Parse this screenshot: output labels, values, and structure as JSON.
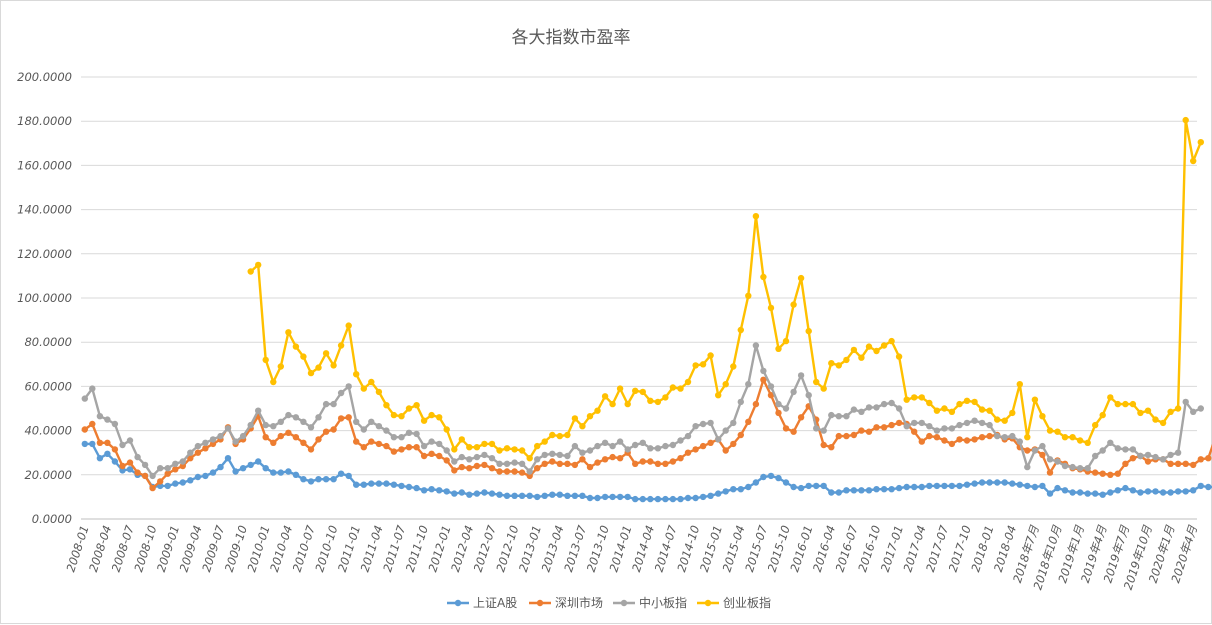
{
  "chart_data": {
    "type": "line",
    "title": "各大指数市盈率",
    "xlabel": "",
    "ylabel": "",
    "ylim": [
      0,
      200
    ],
    "y_ticks": [
      "0.0000",
      "20.0000",
      "40.0000",
      "60.0000",
      "80.0000",
      "100.0000",
      "120.0000",
      "140.0000",
      "160.0000",
      "180.0000",
      "200.0000"
    ],
    "x_tick_labels": [
      "2008-01",
      "2008-04",
      "2008-07",
      "2008-10",
      "2009-01",
      "2009-04",
      "2009-07",
      "2009-10",
      "2010-01",
      "2010-04",
      "2010-07",
      "2010-10",
      "2011-01",
      "2011-04",
      "2011-07",
      "2011-10",
      "2012-01",
      "2012-04",
      "2012-07",
      "2012-10",
      "2013-01",
      "2013-04",
      "2013-07",
      "2013-10",
      "2014-01",
      "2014-04",
      "2014-07",
      "2014-10",
      "2015-01",
      "2015-04",
      "2015-07",
      "2015-10",
      "2016-01",
      "2016-04",
      "2016-07",
      "2016-10",
      "2017-01",
      "2017-04",
      "2017-07",
      "2017-10",
      "2018-01",
      "2018-04",
      "2018年7月",
      "2018年10月",
      "2019年1月",
      "2019年4月",
      "2019年7月",
      "2019年10月",
      "2020年1月",
      "2020年4月"
    ],
    "n_points": 148,
    "grid": true,
    "legend_position": "bottom",
    "series": [
      {
        "name": "上证A股",
        "color": "#5b9bd5",
        "values": [
          34,
          34,
          27.5,
          29.5,
          26,
          22,
          22.5,
          20,
          19.5,
          14.5,
          15,
          15,
          16,
          16.5,
          17.5,
          19,
          19.5,
          21,
          23.5,
          27.5,
          21.5,
          23,
          24.5,
          26,
          23,
          21,
          21,
          21.5,
          20,
          18,
          17,
          18,
          18,
          18,
          20.5,
          19.5,
          15.5,
          15.5,
          16,
          16,
          16,
          15.5,
          15,
          14.5,
          14,
          13,
          13.5,
          13,
          12.5,
          11.5,
          12,
          11,
          11.5,
          12,
          11.5,
          11,
          10.5,
          10.5,
          10.5,
          10.5,
          10,
          10.5,
          11,
          11,
          10.5,
          10.5,
          10.5,
          9.5,
          9.5,
          10,
          10,
          10,
          10,
          9,
          9,
          9,
          9,
          9,
          9,
          9,
          9.5,
          9.5,
          10,
          10.5,
          11.5,
          12.5,
          13.5,
          13.5,
          14.5,
          16.5,
          19,
          19.5,
          18.5,
          16.5,
          14.5,
          14,
          15,
          15,
          15,
          12,
          12,
          13,
          13,
          13,
          13,
          13.5,
          13.5,
          13.5,
          14,
          14.5,
          14.5,
          14.5,
          15,
          15,
          15,
          15,
          15,
          15.5,
          16,
          16.5,
          16.5,
          16.5,
          16.5,
          16,
          15.5,
          15,
          14.5,
          15,
          11.5,
          14,
          13,
          12,
          12,
          11.5,
          11.5,
          11,
          12,
          13,
          14,
          13,
          12,
          12.5,
          12.5,
          12,
          12,
          12.5,
          12.5,
          13,
          15,
          14.5,
          14.5
        ]
      },
      {
        "name": "深圳市场",
        "color": "#ed7d31",
        "values": [
          40.5,
          43,
          34.5,
          34.5,
          31.5,
          24,
          25.5,
          21,
          19.5,
          14,
          17,
          20.5,
          22.5,
          24,
          27.5,
          30,
          32,
          34,
          36,
          41.5,
          34,
          36,
          41,
          46.5,
          37,
          34.5,
          37.5,
          39,
          37,
          34.5,
          31.5,
          36,
          39.5,
          40.5,
          45.5,
          46,
          35,
          32.5,
          35,
          34,
          33,
          30.5,
          31.5,
          32.5,
          32.5,
          28.5,
          29.5,
          28.5,
          26.5,
          22,
          23.5,
          23,
          24,
          24.5,
          23,
          21.5,
          21.5,
          21.5,
          21,
          19.5,
          23,
          25,
          26,
          25,
          25,
          24.5,
          27,
          23.5,
          25.5,
          27,
          28,
          27.5,
          30,
          25,
          26,
          26,
          25,
          25,
          26,
          27.5,
          30,
          31.5,
          33,
          34.5,
          36,
          31,
          34,
          38,
          44,
          52,
          63,
          56,
          48,
          41,
          39.5,
          46,
          51,
          45,
          33.5,
          32.5,
          37.5,
          37.5,
          38,
          40,
          39.5,
          41.5,
          41.5,
          42.5,
          43.5,
          43,
          39.5,
          35,
          37.5,
          37,
          35.5,
          34,
          36,
          35.5,
          36,
          37,
          37.5,
          38,
          36,
          36.5,
          32.5,
          31,
          31.5,
          29,
          21,
          26.5,
          25,
          23,
          22.5,
          21.5,
          21,
          20.5,
          20,
          20.5,
          25,
          27.5,
          28.5,
          26,
          27,
          27,
          25,
          25,
          25,
          24.5,
          27,
          27.5,
          37.5,
          35,
          36.5
        ]
      },
      {
        "name": "中小板指",
        "color": "#a5a5a5",
        "values": [
          54.5,
          59,
          46.5,
          45,
          43,
          33.5,
          35.5,
          28,
          24.5,
          19.5,
          23,
          23,
          25,
          26,
          30,
          33,
          34.5,
          36,
          37.5,
          41,
          35,
          37.5,
          42.5,
          49,
          42.5,
          42,
          44,
          47,
          46,
          44,
          41.5,
          46,
          52,
          52,
          57,
          60,
          44,
          40.5,
          44,
          42,
          40,
          37,
          37,
          39,
          38.5,
          33,
          35,
          34,
          31,
          26,
          28,
          27,
          28,
          29,
          27.5,
          25,
          25,
          25.5,
          25,
          21.5,
          27,
          29,
          29.5,
          29,
          28.5,
          33,
          30,
          31,
          33,
          34.5,
          33,
          35,
          31.5,
          33.5,
          34.5,
          32,
          32,
          33,
          33.5,
          35.5,
          37.5,
          42,
          43,
          43.5,
          36,
          40,
          43.5,
          53,
          61,
          78.5,
          67,
          60,
          52,
          50,
          57.5,
          65,
          56,
          41,
          40,
          47,
          46.5,
          46.5,
          49.5,
          48.5,
          50.5,
          50.5,
          52,
          52.5,
          50,
          42,
          43.5,
          43.5,
          42,
          40,
          41,
          41,
          42.5,
          43.5,
          44.5,
          43.5,
          42.5,
          37.5,
          37,
          37.5,
          35,
          23.5,
          31,
          33,
          27,
          26,
          24,
          23.5,
          23,
          23,
          28.5,
          31,
          34.5,
          32,
          31.5,
          31.5,
          28.5,
          29,
          28,
          27,
          29,
          30,
          53,
          48.5,
          50
        ]
      },
      {
        "name": "创业板指",
        "color": "#ffc000",
        "values": [
          null,
          null,
          null,
          null,
          null,
          null,
          null,
          null,
          null,
          null,
          null,
          null,
          null,
          null,
          null,
          null,
          null,
          null,
          null,
          null,
          null,
          null,
          112,
          115,
          72,
          62,
          69,
          84.5,
          78,
          73.5,
          66,
          68.5,
          75,
          69.5,
          78.5,
          87.5,
          65.5,
          59,
          62,
          57.5,
          51.5,
          47,
          46.5,
          50,
          51.5,
          44.5,
          47,
          46,
          40.5,
          31.5,
          36,
          32.5,
          32.5,
          34,
          34,
          31,
          32,
          31.5,
          31,
          27.5,
          33,
          35,
          38,
          37.5,
          38,
          45.5,
          42,
          46.5,
          49,
          55.5,
          52,
          59,
          52,
          58,
          57.5,
          53.5,
          53,
          55,
          59.5,
          59,
          62,
          69.5,
          70,
          74,
          56,
          61,
          69,
          85.5,
          101,
          137,
          109.5,
          95.5,
          77,
          80.5,
          97,
          109,
          85,
          62,
          59,
          70.5,
          69.5,
          72,
          76.5,
          73,
          78,
          76,
          78.5,
          80.5,
          73.5,
          54,
          55,
          55,
          52.5,
          49,
          50,
          48.5,
          52,
          53.5,
          53,
          49.5,
          49,
          45,
          44.5,
          48,
          61,
          37,
          54,
          46.5,
          40,
          39.5,
          37,
          37,
          35.5,
          34.5,
          42.5,
          47,
          55,
          52,
          52,
          52,
          48,
          49,
          45,
          43.5,
          48.5,
          50,
          180.5,
          162,
          170.5
        ]
      }
    ]
  }
}
